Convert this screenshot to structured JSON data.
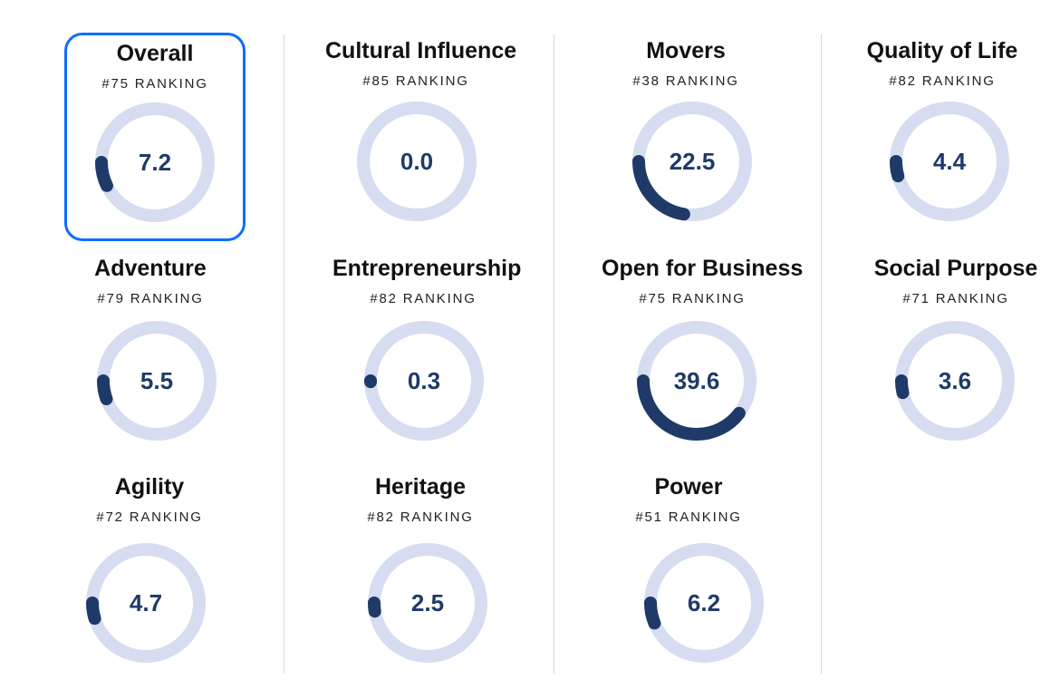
{
  "colors": {
    "track": "#d6ddf0",
    "progress": "#1f3a68",
    "selected_border": "#0d6efd"
  },
  "metrics": [
    {
      "id": "overall",
      "name": "Overall",
      "ranking": "#75 RANKING",
      "score": "7.2",
      "value": 7.2,
      "selected": true
    },
    {
      "id": "cultural-influence",
      "name": "Cultural Influence",
      "ranking": "#85 RANKING",
      "score": "0.0",
      "value": 0.0
    },
    {
      "id": "movers",
      "name": "Movers",
      "ranking": "#38 RANKING",
      "score": "22.5",
      "value": 22.5
    },
    {
      "id": "quality-of-life",
      "name": "Quality of Life",
      "ranking": "#82 RANKING",
      "score": "4.4",
      "value": 4.4
    },
    {
      "id": "adventure",
      "name": "Adventure",
      "ranking": "#79 RANKING",
      "score": "5.5",
      "value": 5.5
    },
    {
      "id": "entrepreneurship",
      "name": "Entrepreneurship",
      "ranking": "#82 RANKING",
      "score": "0.3",
      "value": 0.3
    },
    {
      "id": "open-for-business",
      "name": "Open for Business",
      "ranking": "#75 RANKING",
      "score": "39.6",
      "value": 39.6
    },
    {
      "id": "social-purpose",
      "name": "Social Purpose",
      "ranking": "#71 RANKING",
      "score": "3.6",
      "value": 3.6
    },
    {
      "id": "agility",
      "name": "Agility",
      "ranking": "#72 RANKING",
      "score": "4.7",
      "value": 4.7
    },
    {
      "id": "heritage",
      "name": "Heritage",
      "ranking": "#82 RANKING",
      "score": "2.5",
      "value": 2.5
    },
    {
      "id": "power",
      "name": "Power",
      "ranking": "#51 RANKING",
      "score": "6.2",
      "value": 6.2
    }
  ]
}
